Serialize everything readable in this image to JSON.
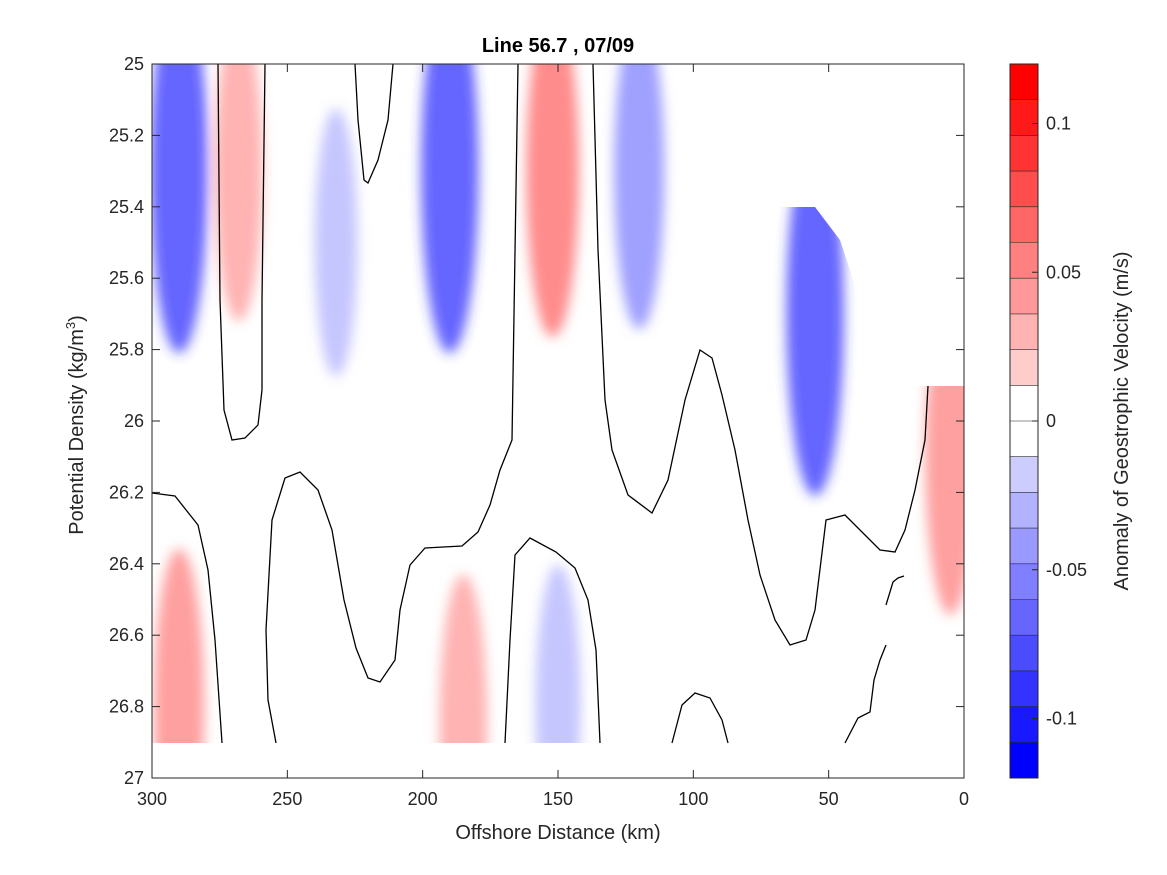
{
  "chart_data": {
    "type": "heatmap",
    "subtype": "filled-contour",
    "title": "Line 56.7 , 07/09",
    "xlabel": "Offshore Distance (km)",
    "ylabel_prefix": "Potential Density (kg/m",
    "ylabel_sup": "3",
    "ylabel_suffix": ")",
    "xlim": [
      300,
      0
    ],
    "x_reversed": true,
    "ylim": [
      25,
      27
    ],
    "y_reversed": true,
    "x_ticks": [
      300,
      250,
      200,
      150,
      100,
      50,
      0
    ],
    "y_ticks": [
      25,
      25.2,
      25.4,
      25.6,
      25.8,
      26,
      26.2,
      26.4,
      26.6,
      26.8,
      27
    ],
    "y_tick_labels": [
      "25",
      "25.2",
      "25.4",
      "25.6",
      "25.8",
      "26",
      "26.2",
      "26.4",
      "26.6",
      "26.8",
      "27"
    ],
    "colorbar": {
      "label": "Anomaly of Geostrophic Velocity (m/s)",
      "range": [
        -0.12,
        0.12
      ],
      "levels": 20,
      "ticks": [
        0.1,
        0.05,
        0,
        -0.05,
        -0.1
      ],
      "tick_labels": [
        "0.1",
        "0.05",
        "0",
        "-0.05",
        "-0.1"
      ],
      "colormap": "blue-white-red",
      "neg_color": "#0000ff",
      "zero_color": "#ffffff",
      "pos_color": "#ff0000"
    },
    "contour_level_line": 0,
    "grid": false,
    "field_features": [
      {
        "x_km": 290,
        "y": 25.3,
        "value": -0.09
      },
      {
        "x_km": 268,
        "y": 25.3,
        "value": 0.05
      },
      {
        "x_km": 232,
        "y": 25.5,
        "value": -0.03
      },
      {
        "x_km": 190,
        "y": 25.3,
        "value": -0.09
      },
      {
        "x_km": 152,
        "y": 25.3,
        "value": 0.07
      },
      {
        "x_km": 120,
        "y": 25.3,
        "value": -0.06
      },
      {
        "x_km": 55,
        "y": 25.7,
        "value": -0.09
      },
      {
        "x_km": 5,
        "y": 26.1,
        "value": 0.06
      },
      {
        "x_km": 290,
        "y": 26.8,
        "value": 0.06
      },
      {
        "x_km": 185,
        "y": 26.85,
        "value": 0.05
      },
      {
        "x_km": 150,
        "y": 26.8,
        "value": -0.04
      }
    ]
  }
}
